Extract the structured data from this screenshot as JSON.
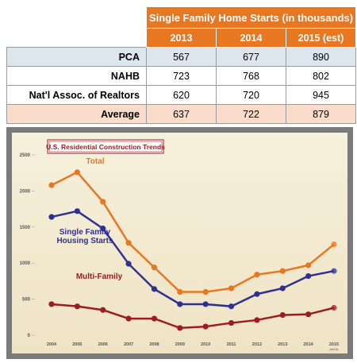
{
  "table": {
    "title": "Single Family Home Starts (in thousands)",
    "columns": [
      "2013",
      "2014",
      "2015 (est)"
    ],
    "rows": [
      [
        "PCA",
        567,
        677,
        890
      ],
      [
        "NAHB",
        723,
        768,
        802
      ],
      [
        "Nat'l Assoc. of Realtors",
        620,
        720,
        945
      ],
      [
        "Average",
        637,
        722,
        879
      ]
    ]
  },
  "chart_data": {
    "type": "line",
    "title": "U.S. Residential Construction Trends",
    "categories": [
      "2004",
      "2005",
      "2006",
      "2007",
      "2008",
      "2009",
      "2010",
      "2011",
      "2012",
      "2013",
      "2014",
      "2015"
    ],
    "x_note": "(est'd)",
    "series": [
      {
        "name": "Total",
        "color": "#e87722",
        "values": [
          2080,
          2260,
          1850,
          1280,
          940,
          600,
          600,
          650,
          840,
          890,
          970,
          1260
        ]
      },
      {
        "name": "Single Family Housing Starts",
        "color": "#2e3192",
        "values": [
          1640,
          1720,
          1480,
          990,
          640,
          430,
          430,
          400,
          570,
          650,
          820,
          890
        ]
      },
      {
        "name": "Multi-Family",
        "color": "#9e1b20",
        "values": [
          430,
          400,
          350,
          230,
          230,
          100,
          120,
          170,
          210,
          280,
          290,
          380
        ]
      }
    ],
    "ylim": [
      0,
      2500
    ],
    "yticks": [
      0,
      500,
      1000,
      1500,
      2000,
      2500
    ],
    "grid": false
  }
}
